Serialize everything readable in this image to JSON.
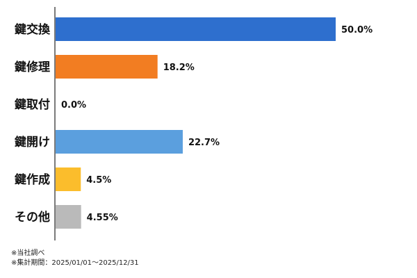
{
  "chart_data": {
    "type": "bar",
    "orientation": "horizontal",
    "categories": [
      "鍵交換",
      "鍵修理",
      "鍵取付",
      "鍵開け",
      "鍵作成",
      "その他"
    ],
    "values": [
      50.0,
      18.2,
      0.0,
      22.7,
      4.5,
      4.55
    ],
    "value_labels": [
      "50.0%",
      "18.2%",
      "0.0%",
      "22.7%",
      "4.5%",
      "4.55%"
    ],
    "colors": [
      "#2e6fce",
      "#f27d22",
      "#2e6fce",
      "#5b9fde",
      "#fbbd2c",
      "#bababa"
    ],
    "xlim": [
      0,
      60
    ],
    "grid": false,
    "legend": "none"
  },
  "footnotes": {
    "source": "※当社調べ",
    "period": "※集計期間：2025/01/01〜2025/12/31"
  }
}
